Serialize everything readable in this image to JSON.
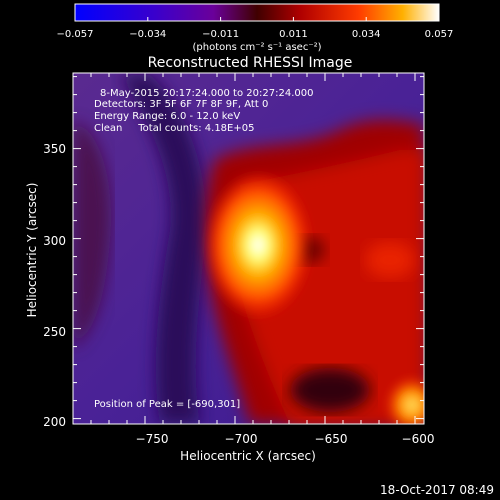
{
  "colorbar": {
    "min_label": "−0.057",
    "tick_labels": [
      "−0.057",
      "−0.034",
      "−0.011",
      "0.011",
      "0.034",
      "0.057"
    ],
    "unit_label": "(photons cm⁻² s⁻¹ asec⁻²)",
    "range": [
      -0.057,
      0.057
    ]
  },
  "plot": {
    "title": "Reconstructed RHESSI Image",
    "info_lines": [
      "8-May-2015 20:17:24.000 to 20:27:24.000",
      "Detectors: 3F 5F 6F 7F 8F 9F, Att 0",
      "Energy Range: 6.0 - 12.0 keV",
      "Clean     Total counts: 4.18E+05"
    ],
    "peak_label": "Position of Peak = [-690,301]",
    "xlabel": "Heliocentric X (arcsec)",
    "ylabel": "Heliocentric Y (arcsec)",
    "xticks": [
      "−750",
      "−700",
      "−650",
      "−600"
    ],
    "yticks": [
      "350",
      "300",
      "250",
      "200"
    ]
  },
  "chart_data": {
    "type": "heatmap",
    "title": "Reconstructed RHESSI Image",
    "xlabel": "Heliocentric X (arcsec)",
    "ylabel": "Heliocentric Y (arcsec)",
    "xlim": [
      -790,
      -595
    ],
    "ylim": [
      197,
      392
    ],
    "x_ticks": [
      -750,
      -700,
      -650,
      -600
    ],
    "y_ticks": [
      200,
      250,
      300,
      350
    ],
    "peak": [
      -690,
      301
    ],
    "value_range": [
      -0.057,
      0.057
    ]
  },
  "footer": {
    "timestamp": "18-Oct-2017 08:49"
  }
}
